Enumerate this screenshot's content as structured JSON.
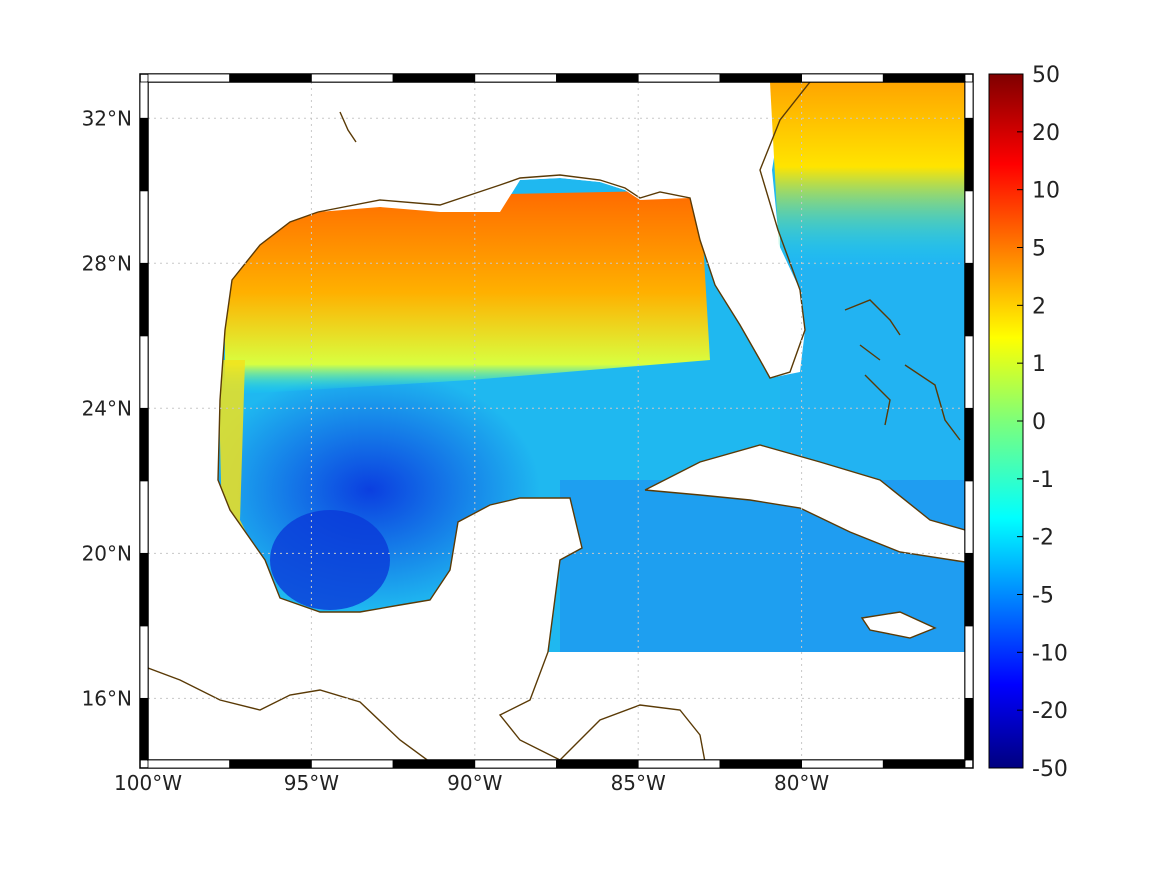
{
  "map": {
    "lat_labels": [
      "32°N",
      "28°N",
      "24°N",
      "20°N",
      "16°N"
    ],
    "lat_values": [
      32,
      28,
      24,
      20,
      16
    ],
    "lon_labels": [
      "100°W",
      "95°W",
      "90°W",
      "85°W",
      "80°W"
    ],
    "lon_values": [
      -100,
      -95,
      -90,
      -85,
      -80
    ],
    "extent": {
      "lon_min": -100,
      "lon_max": -75,
      "lat_min": 14.3,
      "lat_max": 33
    },
    "grid": true,
    "coastline_color": "#5a3a06"
  },
  "colorbar": {
    "labels": [
      "50",
      "20",
      "10",
      "5",
      "2",
      "1",
      "0",
      "-1",
      "-2",
      "-5",
      "-10",
      "-20",
      "-50"
    ],
    "colormap": "jet",
    "position": "right"
  }
}
